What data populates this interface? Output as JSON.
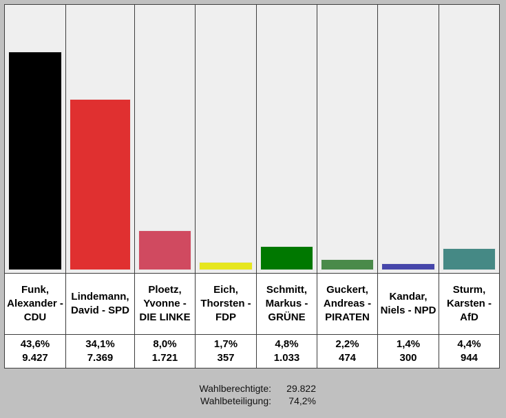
{
  "chart_data": {
    "type": "bar",
    "categories": [
      "Funk, Alexander - CDU",
      "Lindemann, David - SPD",
      "Ploetz, Yvonne - DIE LINKE",
      "Eich, Thorsten - FDP",
      "Schmitt, Markus - GRÜNE",
      "Guckert, Andreas - PIRATEN",
      "Kandar, Niels - NPD",
      "Sturm, Karsten - AfD"
    ],
    "values": [
      43.6,
      34.1,
      8.0,
      1.7,
      4.8,
      2.2,
      1.4,
      4.4
    ],
    "value_labels": [
      "43,6%",
      "34,1%",
      "8,0%",
      "1,7%",
      "4,8%",
      "2,2%",
      "1,4%",
      "4,4%"
    ],
    "votes": [
      "9.427",
      "7.369",
      "1.721",
      "357",
      "1.033",
      "474",
      "300",
      "944"
    ],
    "colors": [
      "#000000",
      "#e03030",
      "#d04a60",
      "#e6e61e",
      "#007800",
      "#4a8a4a",
      "#4646aa",
      "#458985"
    ],
    "ylim": [
      0,
      48
    ],
    "grid": false,
    "legend": "none",
    "title": "",
    "xlabel": "",
    "ylabel": ""
  },
  "footer": {
    "eligible_label": "Wahlberechtigte:",
    "eligible_value": "29.822",
    "turnout_label": "Wahlbeteiligung:",
    "turnout_value": "74,2%"
  }
}
